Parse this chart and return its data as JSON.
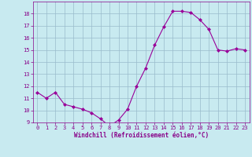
{
  "x": [
    0,
    1,
    2,
    3,
    4,
    5,
    6,
    7,
    8,
    9,
    10,
    11,
    12,
    13,
    14,
    15,
    16,
    17,
    18,
    19,
    20,
    21,
    22,
    23
  ],
  "y": [
    11.5,
    11.0,
    11.5,
    10.5,
    10.3,
    10.1,
    9.8,
    9.3,
    8.7,
    9.2,
    10.1,
    12.0,
    13.5,
    15.4,
    16.9,
    18.2,
    18.2,
    18.1,
    17.5,
    16.7,
    15.0,
    14.9,
    15.1,
    15.0
  ],
  "line_color": "#990099",
  "marker": "D",
  "marker_size": 2.0,
  "background_color": "#c8eaf0",
  "grid_color": "#99bbcc",
  "xlabel": "Windchill (Refroidissement éolien,°C)",
  "tick_color": "#880088",
  "ylim": [
    9,
    19
  ],
  "xlim": [
    -0.5,
    23.5
  ],
  "yticks": [
    9,
    10,
    11,
    12,
    13,
    14,
    15,
    16,
    17,
    18
  ],
  "xticks": [
    0,
    1,
    2,
    3,
    4,
    5,
    6,
    7,
    8,
    9,
    10,
    11,
    12,
    13,
    14,
    15,
    16,
    17,
    18,
    19,
    20,
    21,
    22,
    23
  ]
}
